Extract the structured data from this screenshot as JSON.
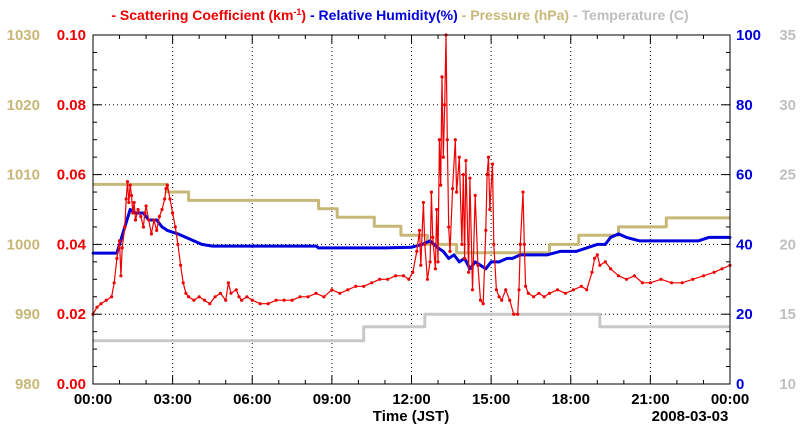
{
  "chart_data": {
    "type": "line",
    "date_label": "2008-03-03",
    "xlabel": "Time (JST)",
    "x_range_hours": [
      0,
      24
    ],
    "x_tick_labels": [
      "00:00",
      "03:00",
      "06:00",
      "09:00",
      "12:00",
      "15:00",
      "18:00",
      "21:00",
      "00:00"
    ],
    "legend": [
      {
        "dash": "-",
        "label": "Scattering Coefficient (km",
        "sup": "-1",
        "tail": ")",
        "color": "#ee0000"
      },
      {
        "dash": "-",
        "label": "Relative Humidity(%)",
        "color": "#0000dd"
      },
      {
        "dash": "-",
        "label": "Pressure (hPa)",
        "color": "#c8b878"
      },
      {
        "dash": "-",
        "label": "Temperature (C)",
        "color": "#bfbfbf"
      }
    ],
    "axes": {
      "pressure": {
        "side": "left-outer",
        "range": [
          980,
          1030
        ],
        "ticks": [
          "980",
          "990",
          "1000",
          "1010",
          "1020",
          "1030"
        ],
        "color": "#c8b878"
      },
      "scattering": {
        "side": "left-inner",
        "range": [
          0,
          0.1
        ],
        "ticks": [
          "0.00",
          "0.02",
          "0.04",
          "0.06",
          "0.08",
          "0.10"
        ],
        "color": "#ee0000"
      },
      "humidity": {
        "side": "right-inner",
        "range": [
          0,
          100
        ],
        "ticks": [
          "0",
          "20",
          "40",
          "60",
          "80",
          "100"
        ],
        "color": "#0000dd"
      },
      "temperature": {
        "side": "right-outer",
        "range": [
          10,
          35
        ],
        "ticks": [
          "10",
          "15",
          "20",
          "25",
          "30",
          "35"
        ],
        "color": "#bfbfbf"
      }
    },
    "series": [
      {
        "name": "Temperature (C)",
        "axis": "temperature",
        "color": "#c8c8c8",
        "step": true,
        "points": [
          [
            0,
            13.1
          ],
          [
            10.2,
            13.1
          ],
          [
            10.2,
            14.1
          ],
          [
            12.5,
            14.1
          ],
          [
            12.5,
            15
          ],
          [
            19.1,
            15
          ],
          [
            19.1,
            14.1
          ],
          [
            24,
            14.1
          ]
        ]
      },
      {
        "name": "Pressure (hPa)",
        "axis": "pressure",
        "color": "#c8b878",
        "step": true,
        "points": [
          [
            0,
            1008.6
          ],
          [
            2.8,
            1008.6
          ],
          [
            2.8,
            1007.5
          ],
          [
            3.6,
            1007.5
          ],
          [
            3.6,
            1006.3
          ],
          [
            8.5,
            1006.3
          ],
          [
            8.5,
            1005.1
          ],
          [
            9.2,
            1005.1
          ],
          [
            9.2,
            1003.9
          ],
          [
            10.6,
            1003.9
          ],
          [
            10.6,
            1002.6
          ],
          [
            11.6,
            1002.6
          ],
          [
            11.6,
            1001.3
          ],
          [
            12.6,
            1001.3
          ],
          [
            12.6,
            1000
          ],
          [
            13.7,
            1000
          ],
          [
            13.7,
            998.8
          ],
          [
            17.2,
            998.8
          ],
          [
            17.2,
            1000
          ],
          [
            18.3,
            1000
          ],
          [
            18.3,
            1001.3
          ],
          [
            19.8,
            1001.3
          ],
          [
            19.8,
            1002.5
          ],
          [
            21.6,
            1002.5
          ],
          [
            21.6,
            1003.8
          ],
          [
            24,
            1003.8
          ]
        ]
      },
      {
        "name": "Relative Humidity(%)",
        "axis": "humidity",
        "color": "#0000dd",
        "points": [
          [
            0,
            37.5
          ],
          [
            0.9,
            37.5
          ],
          [
            1,
            40
          ],
          [
            1.2,
            45
          ],
          [
            1.4,
            50
          ],
          [
            1.6,
            49
          ],
          [
            1.9,
            49
          ],
          [
            2.1,
            47
          ],
          [
            2.4,
            47
          ],
          [
            2.6,
            45
          ],
          [
            2.8,
            44
          ],
          [
            3.2,
            43
          ],
          [
            3.5,
            42
          ],
          [
            3.8,
            41
          ],
          [
            4.1,
            40
          ],
          [
            4.5,
            39.5
          ],
          [
            6,
            39.5
          ],
          [
            8.4,
            39.5
          ],
          [
            8.5,
            39
          ],
          [
            10,
            39
          ],
          [
            11,
            39
          ],
          [
            12,
            39.2
          ],
          [
            12.4,
            40
          ],
          [
            12.7,
            41
          ],
          [
            13,
            39
          ],
          [
            13.2,
            38
          ],
          [
            13.4,
            36
          ],
          [
            13.6,
            37
          ],
          [
            13.8,
            35
          ],
          [
            14,
            36
          ],
          [
            14.2,
            33
          ],
          [
            14.4,
            35
          ],
          [
            14.6,
            34
          ],
          [
            14.8,
            33
          ],
          [
            15,
            35
          ],
          [
            15.3,
            35
          ],
          [
            15.6,
            36
          ],
          [
            15.8,
            36
          ],
          [
            16.1,
            37
          ],
          [
            16.6,
            37
          ],
          [
            17.1,
            37
          ],
          [
            17.6,
            38
          ],
          [
            18.2,
            38
          ],
          [
            18.6,
            39
          ],
          [
            19,
            40
          ],
          [
            19.3,
            40
          ],
          [
            19.5,
            42
          ],
          [
            19.8,
            43
          ],
          [
            20.1,
            42
          ],
          [
            20.6,
            41
          ],
          [
            21.2,
            41
          ],
          [
            22.8,
            41
          ],
          [
            23.2,
            42
          ],
          [
            24,
            42
          ]
        ]
      },
      {
        "name": "Scattering Coefficient (km-1)",
        "axis": "scattering",
        "color": "#ee0000",
        "points": [
          [
            0,
            0.02
          ],
          [
            0.15,
            0.022
          ],
          [
            0.3,
            0.023
          ],
          [
            0.5,
            0.024
          ],
          [
            0.7,
            0.025
          ],
          [
            0.8,
            0.029
          ],
          [
            0.9,
            0.036
          ],
          [
            1.0,
            0.041
          ],
          [
            1.05,
            0.031
          ],
          [
            1.1,
            0.039
          ],
          [
            1.2,
            0.045
          ],
          [
            1.25,
            0.053
          ],
          [
            1.3,
            0.058
          ],
          [
            1.35,
            0.052
          ],
          [
            1.4,
            0.057
          ],
          [
            1.45,
            0.054
          ],
          [
            1.5,
            0.049
          ],
          [
            1.55,
            0.052
          ],
          [
            1.6,
            0.047
          ],
          [
            1.7,
            0.05
          ],
          [
            1.8,
            0.048
          ],
          [
            1.9,
            0.045
          ],
          [
            1.95,
            0.049
          ],
          [
            2.0,
            0.051
          ],
          [
            2.1,
            0.047
          ],
          [
            2.2,
            0.043
          ],
          [
            2.3,
            0.047
          ],
          [
            2.4,
            0.044
          ],
          [
            2.5,
            0.048
          ],
          [
            2.6,
            0.05
          ],
          [
            2.7,
            0.053
          ],
          [
            2.75,
            0.056
          ],
          [
            2.8,
            0.057
          ],
          [
            2.9,
            0.053
          ],
          [
            3.0,
            0.049
          ],
          [
            3.1,
            0.045
          ],
          [
            3.2,
            0.04
          ],
          [
            3.3,
            0.034
          ],
          [
            3.4,
            0.029
          ],
          [
            3.5,
            0.026
          ],
          [
            3.6,
            0.025
          ],
          [
            3.8,
            0.024
          ],
          [
            4.0,
            0.025
          ],
          [
            4.2,
            0.024
          ],
          [
            4.4,
            0.023
          ],
          [
            4.6,
            0.025
          ],
          [
            4.8,
            0.026
          ],
          [
            5.0,
            0.024
          ],
          [
            5.1,
            0.029
          ],
          [
            5.2,
            0.026
          ],
          [
            5.4,
            0.027
          ],
          [
            5.5,
            0.025
          ],
          [
            5.6,
            0.024
          ],
          [
            5.8,
            0.025
          ],
          [
            6.0,
            0.024
          ],
          [
            6.3,
            0.023
          ],
          [
            6.6,
            0.023
          ],
          [
            6.9,
            0.024
          ],
          [
            7.2,
            0.024
          ],
          [
            7.5,
            0.024
          ],
          [
            7.8,
            0.025
          ],
          [
            8.1,
            0.025
          ],
          [
            8.4,
            0.026
          ],
          [
            8.7,
            0.025
          ],
          [
            9.0,
            0.027
          ],
          [
            9.3,
            0.026
          ],
          [
            9.6,
            0.027
          ],
          [
            9.9,
            0.028
          ],
          [
            10.2,
            0.028
          ],
          [
            10.5,
            0.029
          ],
          [
            10.8,
            0.03
          ],
          [
            11.1,
            0.03
          ],
          [
            11.4,
            0.031
          ],
          [
            11.7,
            0.031
          ],
          [
            11.9,
            0.03
          ],
          [
            12.05,
            0.032
          ],
          [
            12.2,
            0.038
          ],
          [
            12.3,
            0.044
          ],
          [
            12.35,
            0.034
          ],
          [
            12.45,
            0.052
          ],
          [
            12.5,
            0.04
          ],
          [
            12.6,
            0.03
          ],
          [
            12.7,
            0.035
          ],
          [
            12.75,
            0.055
          ],
          [
            12.8,
            0.042
          ],
          [
            12.9,
            0.033
          ],
          [
            12.95,
            0.05
          ],
          [
            13.0,
            0.035
          ],
          [
            13.05,
            0.07
          ],
          [
            13.1,
            0.057
          ],
          [
            13.15,
            0.088
          ],
          [
            13.2,
            0.065
          ],
          [
            13.25,
            0.08
          ],
          [
            13.3,
            0.1
          ],
          [
            13.35,
            0.07
          ],
          [
            13.4,
            0.045
          ],
          [
            13.45,
            0.038
          ],
          [
            13.55,
            0.056
          ],
          [
            13.65,
            0.07
          ],
          [
            13.7,
            0.055
          ],
          [
            13.8,
            0.065
          ],
          [
            13.9,
            0.04
          ],
          [
            13.95,
            0.06
          ],
          [
            14.0,
            0.036
          ],
          [
            14.05,
            0.064
          ],
          [
            14.15,
            0.032
          ],
          [
            14.2,
            0.059
          ],
          [
            14.3,
            0.027
          ],
          [
            14.4,
            0.054
          ],
          [
            14.5,
            0.034
          ],
          [
            14.6,
            0.024
          ],
          [
            14.7,
            0.023
          ],
          [
            14.8,
            0.044
          ],
          [
            14.85,
            0.06
          ],
          [
            14.9,
            0.065
          ],
          [
            14.95,
            0.05
          ],
          [
            15.05,
            0.063
          ],
          [
            15.1,
            0.04
          ],
          [
            15.2,
            0.027
          ],
          [
            15.3,
            0.025
          ],
          [
            15.4,
            0.024
          ],
          [
            15.55,
            0.027
          ],
          [
            15.7,
            0.024
          ],
          [
            15.85,
            0.02
          ],
          [
            16.0,
            0.02
          ],
          [
            16.05,
            0.027
          ],
          [
            16.1,
            0.04
          ],
          [
            16.2,
            0.055
          ],
          [
            16.25,
            0.04
          ],
          [
            16.3,
            0.028
          ],
          [
            16.4,
            0.026
          ],
          [
            16.6,
            0.025
          ],
          [
            16.8,
            0.026
          ],
          [
            17.0,
            0.025
          ],
          [
            17.2,
            0.026
          ],
          [
            17.5,
            0.027
          ],
          [
            17.8,
            0.026
          ],
          [
            18.1,
            0.027
          ],
          [
            18.4,
            0.028
          ],
          [
            18.6,
            0.027
          ],
          [
            18.8,
            0.032
          ],
          [
            18.9,
            0.036
          ],
          [
            19.0,
            0.037
          ],
          [
            19.1,
            0.034
          ],
          [
            19.3,
            0.035
          ],
          [
            19.5,
            0.033
          ],
          [
            19.8,
            0.031
          ],
          [
            20.1,
            0.03
          ],
          [
            20.4,
            0.031
          ],
          [
            20.7,
            0.029
          ],
          [
            21.0,
            0.029
          ],
          [
            21.4,
            0.03
          ],
          [
            21.8,
            0.029
          ],
          [
            22.2,
            0.029
          ],
          [
            22.6,
            0.03
          ],
          [
            23.0,
            0.031
          ],
          [
            23.4,
            0.032
          ],
          [
            23.7,
            0.033
          ],
          [
            24.0,
            0.034
          ]
        ]
      }
    ]
  }
}
